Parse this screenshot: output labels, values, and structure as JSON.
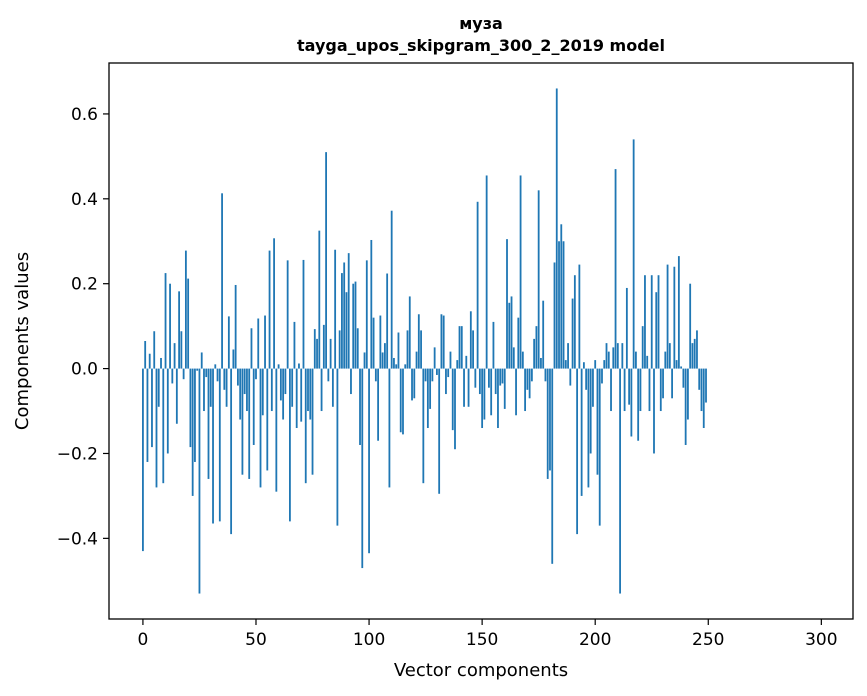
{
  "chart_data": {
    "type": "bar",
    "title": "муза",
    "subtitle": "tayga_upos_skipgram_300_2_2019 model",
    "xlabel": "Vector components",
    "ylabel": "Components values",
    "xlim": [
      -15,
      314
    ],
    "ylim": [
      -0.59,
      0.72
    ],
    "xticks": [
      0,
      50,
      100,
      150,
      200,
      250,
      300
    ],
    "yticks": [
      -0.4,
      -0.2,
      0.0,
      0.2,
      0.4,
      0.6
    ],
    "xtick_labels": [
      "0",
      "50",
      "100",
      "150",
      "200",
      "250",
      "300"
    ],
    "ytick_labels": [
      "−0.4",
      "−0.2",
      "0.0",
      "0.2",
      "0.4",
      "0.6"
    ],
    "bar_color": "#1f77b4",
    "values": [
      -0.43,
      0.065,
      -0.22,
      0.035,
      -0.185,
      0.088,
      -0.28,
      -0.09,
      0.025,
      -0.27,
      0.225,
      -0.2,
      0.2,
      -0.035,
      0.06,
      -0.13,
      0.182,
      0.088,
      -0.025,
      0.278,
      0.212,
      -0.185,
      -0.3,
      -0.22,
      -0.005,
      -0.53,
      0.038,
      -0.1,
      -0.02,
      -0.26,
      -0.09,
      -0.365,
      0.01,
      -0.03,
      -0.36,
      0.413,
      -0.05,
      -0.09,
      0.123,
      -0.39,
      0.045,
      0.197,
      -0.04,
      -0.12,
      -0.25,
      -0.06,
      -0.1,
      -0.26,
      0.095,
      -0.18,
      -0.025,
      0.118,
      -0.28,
      -0.11,
      0.125,
      -0.24,
      0.278,
      -0.1,
      0.307,
      -0.29,
      0.01,
      -0.075,
      -0.12,
      -0.06,
      0.255,
      -0.36,
      -0.09,
      0.11,
      -0.14,
      0.012,
      -0.125,
      0.256,
      -0.27,
      -0.1,
      -0.12,
      -0.25,
      0.093,
      0.07,
      0.325,
      -0.1,
      0.103,
      0.51,
      -0.03,
      0.07,
      -0.09,
      0.28,
      -0.37,
      0.09,
      0.225,
      0.25,
      0.18,
      0.272,
      -0.06,
      0.2,
      0.205,
      0.095,
      -0.18,
      -0.47,
      0.038,
      0.255,
      -0.435,
      0.303,
      0.12,
      -0.03,
      -0.17,
      0.125,
      0.038,
      0.06,
      0.224,
      -0.28,
      0.372,
      0.025,
      0.01,
      0.085,
      -0.15,
      -0.155,
      0.01,
      0.09,
      0.17,
      -0.075,
      -0.07,
      0.04,
      0.128,
      0.09,
      -0.27,
      -0.03,
      -0.14,
      -0.095,
      -0.03,
      0.05,
      -0.015,
      -0.295,
      0.128,
      0.125,
      -0.06,
      -0.02,
      0.04,
      -0.145,
      -0.19,
      0.02,
      0.1,
      0.1,
      -0.09,
      0.03,
      -0.09,
      0.135,
      0.09,
      -0.045,
      0.393,
      -0.06,
      -0.14,
      -0.12,
      0.455,
      -0.045,
      -0.11,
      0.11,
      -0.06,
      -0.14,
      -0.04,
      -0.035,
      -0.095,
      0.305,
      0.155,
      0.17,
      0.05,
      -0.11,
      0.12,
      0.455,
      0.04,
      -0.1,
      -0.05,
      -0.07,
      -0.03,
      0.07,
      0.1,
      0.42,
      0.025,
      0.16,
      -0.03,
      -0.26,
      -0.24,
      -0.46,
      0.25,
      0.66,
      0.3,
      0.34,
      0.3,
      0.02,
      0.06,
      -0.04,
      0.165,
      0.22,
      -0.39,
      0.245,
      -0.3,
      0.015,
      -0.05,
      -0.28,
      -0.2,
      -0.09,
      0.02,
      -0.25,
      -0.37,
      -0.035,
      0.02,
      0.06,
      0.04,
      -0.1,
      0.05,
      0.47,
      0.06,
      -0.53,
      0.06,
      -0.1,
      0.19,
      -0.085,
      -0.16,
      0.54,
      0.04,
      -0.17,
      -0.1,
      0.1,
      0.22,
      0.03,
      -0.1,
      0.22,
      -0.2,
      0.18,
      0.22,
      -0.1,
      -0.07,
      0.04,
      0.245,
      0.06,
      -0.07,
      0.24,
      0.02,
      0.265,
      0.005,
      -0.045,
      -0.18,
      -0.12,
      0.2,
      0.06,
      0.07,
      0.09,
      -0.05,
      -0.1,
      -0.14,
      -0.08
    ]
  }
}
